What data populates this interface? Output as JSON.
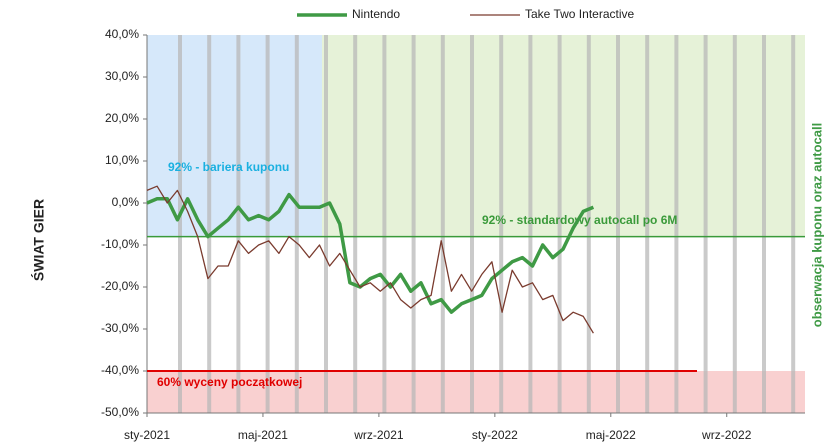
{
  "chart_data": {
    "type": "line",
    "y_title": "ŚWIAT GIER",
    "y2_title": "obserwacja kuponu oraz autocall",
    "annotation": "92% - bariera kuponu",
    "xlim": [
      0,
      22.7
    ],
    "xticks": [
      {
        "value": 0,
        "label": "sty-2021"
      },
      {
        "value": 4,
        "label": "maj-2021"
      },
      {
        "value": 8,
        "label": "wrz-2021"
      },
      {
        "value": 12,
        "label": "sty-2022"
      },
      {
        "value": 16,
        "label": "maj-2022"
      },
      {
        "value": 20,
        "label": "wrz-2022"
      }
    ],
    "ylim": [
      -50,
      40
    ],
    "yticks": [
      {
        "value": -50,
        "label": "-50,0%"
      },
      {
        "value": -40,
        "label": "-40,0%"
      },
      {
        "value": -30,
        "label": "-30,0%"
      },
      {
        "value": -20,
        "label": "-20,0%"
      },
      {
        "value": -10,
        "label": "-10,0%"
      },
      {
        "value": 0,
        "label": "0,0%"
      },
      {
        "value": 10,
        "label": "10,0%"
      },
      {
        "value": 20,
        "label": "20,0%"
      },
      {
        "value": 30,
        "label": "30,0%"
      },
      {
        "value": 40,
        "label": "40,0%"
      }
    ],
    "hlines": [
      {
        "value": -8,
        "color": "#3a9a3a",
        "label": "92% - standardowy autocall  po 6M"
      },
      {
        "value": -40,
        "color": "#e00000",
        "label": "60% wyceny początkowej"
      }
    ],
    "x": [
      0,
      0.35,
      0.7,
      1.05,
      1.4,
      1.75,
      2.1,
      2.45,
      2.8,
      3.15,
      3.5,
      3.85,
      4.2,
      4.55,
      4.9,
      5.25,
      5.6,
      5.95,
      6.3,
      6.65,
      7,
      7.35,
      7.7,
      8.05,
      8.4,
      8.75,
      9.1,
      9.45,
      9.8,
      10.15,
      10.5,
      10.85,
      11.2,
      11.55,
      11.9,
      12.25,
      12.6,
      12.95,
      13.3,
      13.65,
      14,
      14.35,
      14.7,
      15.05,
      15.4
    ],
    "series": [
      {
        "name": "Nintendo",
        "color": "#3f9a45",
        "width": 3.5,
        "values": [
          0,
          1,
          1,
          -4,
          1,
          -4,
          -8,
          -6,
          -4,
          -1,
          -4,
          -3,
          -4,
          -2,
          2,
          -1,
          -1,
          -1,
          0,
          -5,
          -19,
          -20,
          -18,
          -17,
          -20,
          -17,
          -21,
          -19,
          -24,
          -23,
          -26,
          -24,
          -23,
          -22,
          -18,
          -16,
          -14,
          -13,
          -15,
          -10,
          -13,
          -11,
          -6,
          -2,
          -1
        ]
      },
      {
        "name": "Take Two Interactive",
        "color": "#7a3b2e",
        "width": 1.3,
        "values": [
          3,
          4,
          0,
          3,
          -2,
          -8,
          -18,
          -15,
          -15,
          -9,
          -12,
          -10,
          -9,
          -12,
          -8,
          -10,
          -13,
          -10,
          -15,
          -12,
          -16,
          -20,
          -19,
          -21,
          -19,
          -23,
          -25,
          -23,
          -22,
          -9,
          -21,
          -17,
          -21,
          -17,
          -14,
          -26,
          -16,
          -20,
          -19,
          -23,
          -22,
          -28,
          -26,
          -27,
          -31
        ]
      }
    ]
  }
}
